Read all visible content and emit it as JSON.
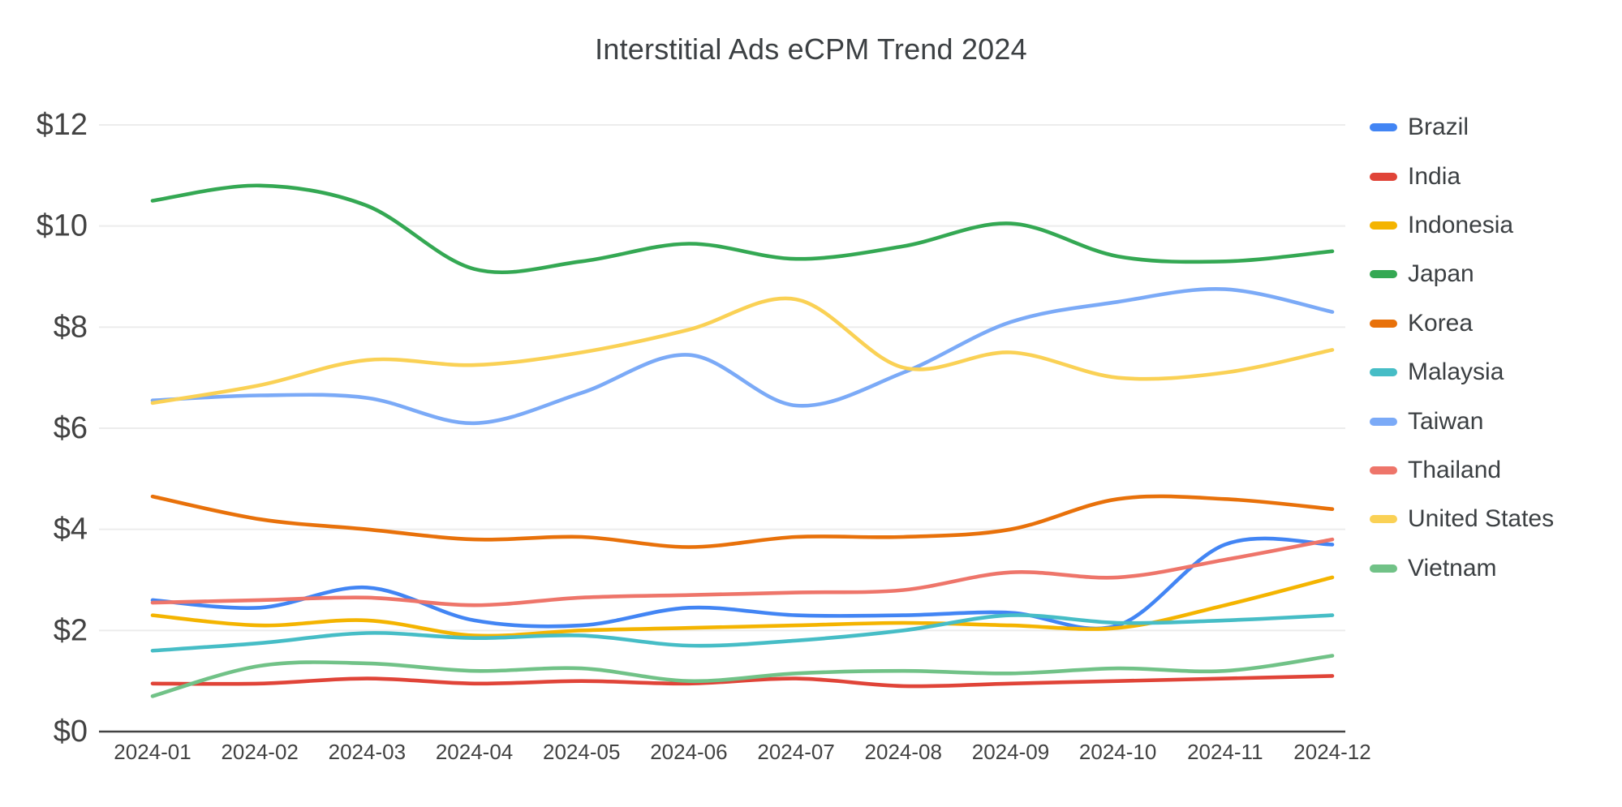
{
  "title": "Interstitial Ads eCPM Trend 2024",
  "chart_data": {
    "type": "line",
    "x": [
      "2024-01",
      "2024-02",
      "2024-03",
      "2024-04",
      "2024-05",
      "2024-06",
      "2024-07",
      "2024-08",
      "2024-09",
      "2024-10",
      "2024-11",
      "2024-12"
    ],
    "xlabel": "",
    "ylabel": "",
    "ylim": [
      0,
      12
    ],
    "y_ticks": [
      0,
      2,
      4,
      6,
      8,
      10,
      12
    ],
    "y_tick_labels": [
      "$0",
      "$2",
      "$4",
      "$6",
      "$8",
      "$10",
      "$12"
    ],
    "grid": true,
    "legend_position": "right",
    "smooth": true,
    "series": [
      {
        "name": "Brazil",
        "color": "#4285F4",
        "values": [
          2.6,
          2.45,
          2.85,
          2.2,
          2.1,
          2.45,
          2.3,
          2.3,
          2.35,
          2.1,
          3.7,
          3.7
        ]
      },
      {
        "name": "India",
        "color": "#E04438",
        "values": [
          0.95,
          0.95,
          1.05,
          0.95,
          1.0,
          0.95,
          1.05,
          0.9,
          0.95,
          1.0,
          1.05,
          1.1
        ]
      },
      {
        "name": "Indonesia",
        "color": "#F4B400",
        "values": [
          2.3,
          2.1,
          2.2,
          1.9,
          2.0,
          2.05,
          2.1,
          2.15,
          2.1,
          2.05,
          2.5,
          3.05
        ]
      },
      {
        "name": "Japan",
        "color": "#34A853",
        "values": [
          10.5,
          10.8,
          10.4,
          9.15,
          9.3,
          9.65,
          9.35,
          9.6,
          10.05,
          9.4,
          9.3,
          9.5
        ]
      },
      {
        "name": "Korea",
        "color": "#E8710A",
        "values": [
          4.65,
          4.2,
          4.0,
          3.8,
          3.85,
          3.65,
          3.85,
          3.85,
          4.0,
          4.6,
          4.6,
          4.4
        ]
      },
      {
        "name": "Malaysia",
        "color": "#46BDC6",
        "values": [
          1.6,
          1.75,
          1.95,
          1.85,
          1.9,
          1.7,
          1.8,
          2.0,
          2.3,
          2.15,
          2.2,
          2.3
        ]
      },
      {
        "name": "Taiwan",
        "color": "#7BAAF7",
        "values": [
          6.55,
          6.65,
          6.6,
          6.1,
          6.7,
          7.45,
          6.45,
          7.1,
          8.1,
          8.5,
          8.75,
          8.3
        ]
      },
      {
        "name": "Thailand",
        "color": "#EE756A",
        "values": [
          2.55,
          2.6,
          2.65,
          2.5,
          2.65,
          2.7,
          2.75,
          2.8,
          3.15,
          3.05,
          3.4,
          3.8
        ]
      },
      {
        "name": "United States",
        "color": "#FAD155",
        "values": [
          6.5,
          6.85,
          7.35,
          7.25,
          7.5,
          7.95,
          8.55,
          7.2,
          7.5,
          7.0,
          7.1,
          7.55
        ]
      },
      {
        "name": "Vietnam",
        "color": "#71C287",
        "values": [
          0.7,
          1.3,
          1.35,
          1.2,
          1.25,
          1.0,
          1.15,
          1.2,
          1.15,
          1.25,
          1.2,
          1.5
        ]
      }
    ]
  },
  "style": {
    "background": "#ffffff",
    "gridline_color": "#ECECEC",
    "axis_line_color": "#424242",
    "tick_label_color": "#424242",
    "title_color": "#3c4043",
    "legend_text_color": "#3c4043",
    "line_width": 4.6
  }
}
